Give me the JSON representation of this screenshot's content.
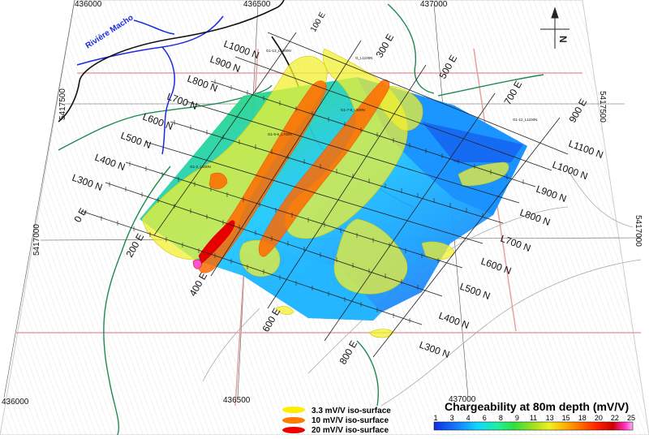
{
  "map": {
    "river_label": "Rivière Macho",
    "easting_top": [
      "436000",
      "436500",
      "437000"
    ],
    "easting_bottom": [
      "436000",
      "436500",
      "437000"
    ],
    "northing": [
      "5417500",
      "5417000"
    ],
    "north_arrow": "N",
    "grid_lines_north": [
      "L1000 N",
      "L900 N",
      "L800 N",
      "L700 N",
      "L600 N",
      "L500 N",
      "L400 N",
      "L300 N"
    ],
    "grid_lines_south": [
      "L1100 N",
      "L1000 N",
      "L900 N",
      "L800 N",
      "L700 N",
      "L600 N",
      "L500 N",
      "L400 N",
      "L300 N"
    ],
    "stations_east": [
      "100 E",
      "300 E",
      "500 E",
      "700 E",
      "900 E"
    ],
    "stations_west": [
      "0 E",
      "200 E",
      "400 E",
      "600 E",
      "800 E"
    ],
    "annotations": [
      "G1-13_L1000N",
      "G_L1100N",
      "G1-7-8_L500N",
      "G1-12_L1100N",
      "G1-5-6_L700N",
      "G1-2_L500N"
    ]
  },
  "legend": {
    "items": [
      {
        "label": "3.3 mV/V iso-surface",
        "color": "#ffee00"
      },
      {
        "label": "10 mV/V iso-surface",
        "color": "#ff7a00"
      },
      {
        "label": "20 mV/V iso-surface",
        "color": "#ee0000"
      }
    ]
  },
  "colorbar": {
    "title": "Chargeability at 80m depth (mV/V)",
    "ticks": [
      "1",
      "3",
      "4",
      "6",
      "8",
      "9",
      "11",
      "13",
      "15",
      "18",
      "20",
      "22",
      "25"
    ],
    "colors": [
      "#1030e0",
      "#1580ff",
      "#10d8ff",
      "#20f0a0",
      "#30e040",
      "#a0e020",
      "#f0f020",
      "#ffb000",
      "#ff6a00",
      "#ff2000",
      "#d00000",
      "#ff30c0",
      "#ffb0f0"
    ]
  }
}
